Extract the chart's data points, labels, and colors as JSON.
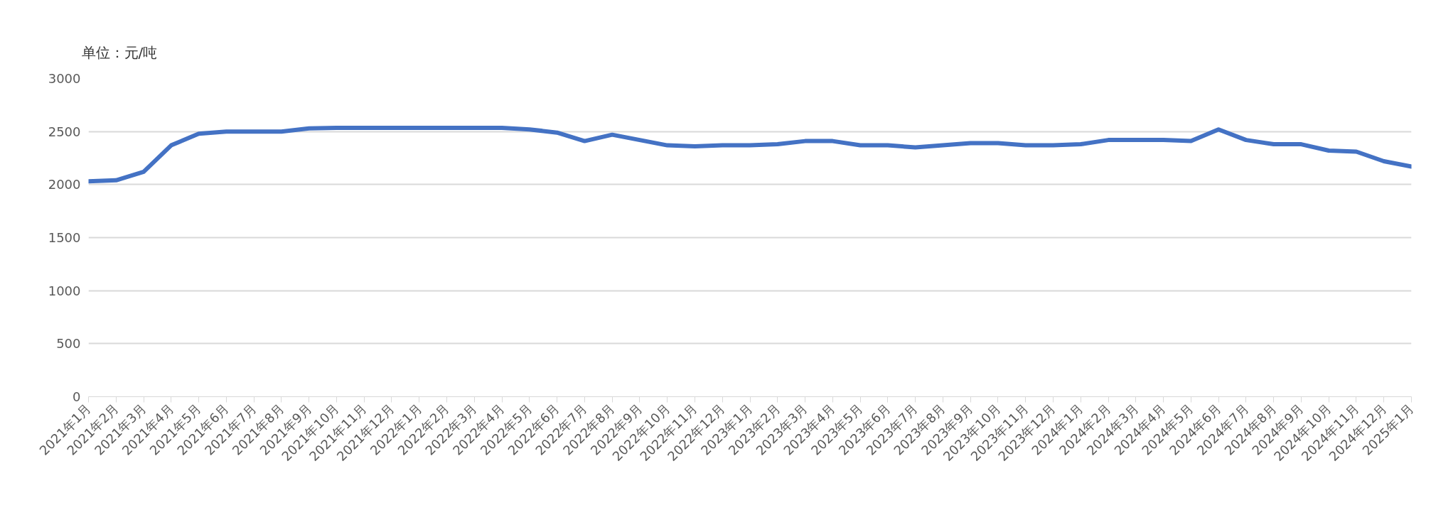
{
  "chart_data": {
    "type": "line",
    "title": "单位：元/吨",
    "categories": [
      "2021年1月",
      "2021年2月",
      "2021年3月",
      "2021年4月",
      "2021年5月",
      "2021年6月",
      "2021年7月",
      "2021年8月",
      "2021年9月",
      "2021年10月",
      "2021年11月",
      "2021年12月",
      "2022年1月",
      "2022年2月",
      "2022年3月",
      "2022年4月",
      "2022年5月",
      "2022年6月",
      "2022年7月",
      "2022年8月",
      "2022年9月",
      "2022年10月",
      "2022年11月",
      "2022年12月",
      "2023年1月",
      "2023年2月",
      "2023年3月",
      "2023年4月",
      "2023年5月",
      "2023年6月",
      "2023年7月",
      "2023年8月",
      "2023年9月",
      "2023年10月",
      "2023年11月",
      "2023年12月",
      "2024年1月",
      "2024年2月",
      "2024年3月",
      "2024年4月",
      "2024年5月",
      "2024年6月",
      "2024年7月",
      "2024年8月",
      "2024年9月",
      "2024年10月",
      "2024年11月",
      "2024年12月",
      "2025年1月"
    ],
    "series": [
      {
        "color": "#4472c4",
        "values": [
          2030,
          2040,
          2120,
          2370,
          2480,
          2500,
          2500,
          2500,
          2530,
          2535,
          2535,
          2535,
          2535,
          2535,
          2535,
          2535,
          2520,
          2490,
          2410,
          2470,
          2420,
          2370,
          2360,
          2370,
          2370,
          2380,
          2410,
          2410,
          2370,
          2370,
          2350,
          2370,
          2390,
          2390,
          2370,
          2370,
          2380,
          2420,
          2420,
          2420,
          2410,
          2520,
          2420,
          2380,
          2380,
          2320,
          2310,
          2220,
          2170
        ]
      }
    ],
    "ylim": [
      0,
      3000
    ],
    "yticks": [
      0,
      500,
      1000,
      1500,
      2000,
      2500,
      3000
    ],
    "grid": "y",
    "marker": "none",
    "line_style": "solid"
  }
}
